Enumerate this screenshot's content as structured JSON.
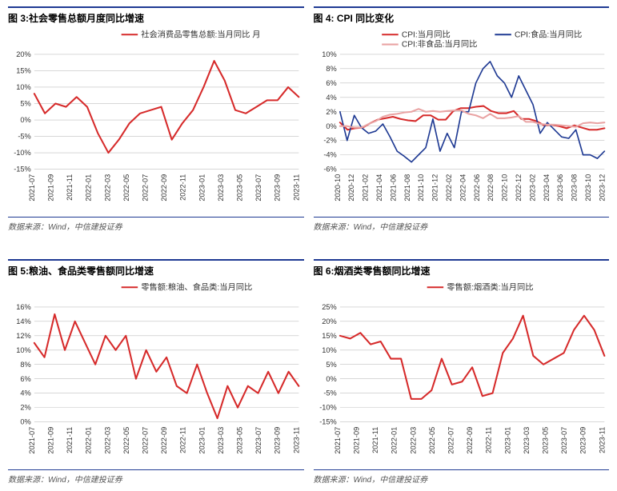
{
  "common": {
    "source": "数据来源：Wind，中信建投证券",
    "colors": {
      "accent_border": "#1f3a93",
      "red": "#d62a2a",
      "pink": "#e9a3a3",
      "navy": "#1f3a93",
      "grid": "#bfbfbf",
      "axis_text": "#333333",
      "bg": "#ffffff"
    },
    "font": {
      "title_size": 12,
      "legend_size": 10,
      "tick_size": 9
    }
  },
  "chart3": {
    "title": "图 3:社会零售总额月度同比增速",
    "legend": [
      {
        "label": "社会消费品零售总额:当月同比 月",
        "color": "#d62a2a"
      }
    ],
    "type": "line",
    "ylim": [
      -15,
      20
    ],
    "ytick_step": 5,
    "ytick_suffix": "%",
    "x_labels": [
      "2021-07",
      "2021-09",
      "2021-11",
      "2022-01",
      "2022-03",
      "2022-05",
      "2022-07",
      "2022-09",
      "2022-11",
      "2023-01",
      "2023-03",
      "2023-05",
      "2023-07",
      "2023-09",
      "2023-11"
    ],
    "series": [
      {
        "color": "#d62a2a",
        "width": 2,
        "y": [
          8,
          2,
          5,
          4,
          7,
          4,
          -4,
          -10,
          -6,
          -1,
          2,
          3,
          4,
          -6,
          -1,
          3,
          10,
          18,
          12,
          3,
          2,
          4,
          6,
          6,
          10,
          7
        ]
      }
    ],
    "line_width": 2,
    "grid_color": "#bfbfbf"
  },
  "chart4": {
    "title": "图 4: CPI 同比变化",
    "legend": [
      {
        "label": "CPI:当月同比",
        "color": "#d62a2a"
      },
      {
        "label": "CPI:食品:当月同比",
        "color": "#1f3a93"
      },
      {
        "label": "CPI:非食品:当月同比",
        "color": "#e9a3a3"
      }
    ],
    "type": "line",
    "ylim": [
      -6,
      10
    ],
    "ytick_step": 2,
    "ytick_suffix": "%",
    "x_labels": [
      "2020-10",
      "2020-12",
      "2021-02",
      "2021-04",
      "2021-06",
      "2021-08",
      "2021-10",
      "2021-12",
      "2022-02",
      "2022-04",
      "2022-06",
      "2022-08",
      "2022-10",
      "2022-12",
      "2023-02",
      "2023-04",
      "2023-06",
      "2023-08",
      "2023-10",
      "2023-12"
    ],
    "series": [
      {
        "color": "#d62a2a",
        "width": 2,
        "y": [
          0.5,
          -0.5,
          -0.3,
          -0.2,
          0.4,
          0.9,
          1.1,
          1.3,
          1.0,
          0.8,
          0.7,
          1.5,
          1.5,
          0.9,
          0.9,
          2.1,
          2.5,
          2.5,
          2.7,
          2.8,
          2.1,
          1.8,
          1.8,
          2.1,
          1.0,
          1.0,
          0.7,
          0.1,
          0.2,
          0.0,
          -0.3,
          0.1,
          -0.2,
          -0.5,
          -0.5,
          -0.3
        ]
      },
      {
        "color": "#1f3a93",
        "width": 1.6,
        "y": [
          2,
          -2,
          1.5,
          -0.2,
          -1,
          -0.7,
          0.3,
          -1.5,
          -3.5,
          -4.2,
          -5,
          -4,
          -3,
          1,
          -3.5,
          -1,
          -3,
          2,
          2,
          6,
          8,
          9,
          7,
          6,
          4,
          7,
          5,
          3,
          -1,
          0.5,
          -0.5,
          -1.5,
          -1.7,
          -0.5,
          -4,
          -4,
          -4.5,
          -3.5
        ]
      },
      {
        "color": "#e9a3a3",
        "width": 2,
        "y": [
          0,
          0,
          -0.2,
          -0.2,
          0.3,
          0.7,
          1.3,
          1.6,
          1.7,
          1.9,
          2.0,
          2.4,
          2.0,
          2.1,
          2.0,
          2.1,
          2.2,
          2.2,
          1.7,
          1.5,
          1.1,
          1.7,
          1.1,
          1.1,
          1.2,
          1.4,
          0.6,
          0.6,
          0.3,
          0.2,
          0.2,
          0.1,
          0.0,
          -0.1,
          0.4,
          0.5,
          0.4,
          0.5
        ]
      }
    ],
    "grid_color": "#bfbfbf"
  },
  "chart5": {
    "title": "图 5:粮油、食品类零售额同比增速",
    "legend": [
      {
        "label": "零售额:粮油、食品类:当月同比",
        "color": "#d62a2a"
      }
    ],
    "type": "line",
    "ylim": [
      0,
      16
    ],
    "ytick_step": 2,
    "ytick_suffix": "%",
    "x_labels": [
      "2021-07",
      "2021-09",
      "2021-11",
      "2022-01",
      "2022-03",
      "2022-05",
      "2022-07",
      "2022-09",
      "2022-11",
      "2023-01",
      "2023-03",
      "2023-05",
      "2023-07",
      "2023-09",
      "2023-11"
    ],
    "series": [
      {
        "color": "#d62a2a",
        "width": 2,
        "y": [
          11,
          9,
          15,
          10,
          14,
          11,
          8,
          12,
          10,
          12,
          6,
          10,
          7,
          9,
          5,
          4,
          8,
          4,
          0.5,
          5,
          2,
          5,
          4,
          7,
          4,
          7,
          5
        ]
      }
    ],
    "grid_color": "#bfbfbf"
  },
  "chart6": {
    "title": "图 6:烟酒类零售额同比增速",
    "legend": [
      {
        "label": "零售额:烟酒类:当月同比",
        "color": "#d62a2a"
      }
    ],
    "type": "line",
    "ylim": [
      -15,
      25
    ],
    "ytick_step": 5,
    "ytick_suffix": "%",
    "x_labels": [
      "2021-07",
      "2021-09",
      "2021-11",
      "2022-01",
      "2022-03",
      "2022-05",
      "2022-07",
      "2022-09",
      "2022-11",
      "2023-01",
      "2023-03",
      "2023-05",
      "2023-07",
      "2023-09",
      "2023-11"
    ],
    "series": [
      {
        "color": "#d62a2a",
        "width": 2,
        "y": [
          15,
          14,
          16,
          12,
          13,
          7,
          7,
          -7,
          -7,
          -4,
          7,
          -2,
          -1,
          4,
          -6,
          -5,
          9,
          14,
          22,
          8,
          5,
          7,
          9,
          17,
          22,
          17,
          8
        ]
      }
    ],
    "grid_color": "#bfbfbf"
  }
}
